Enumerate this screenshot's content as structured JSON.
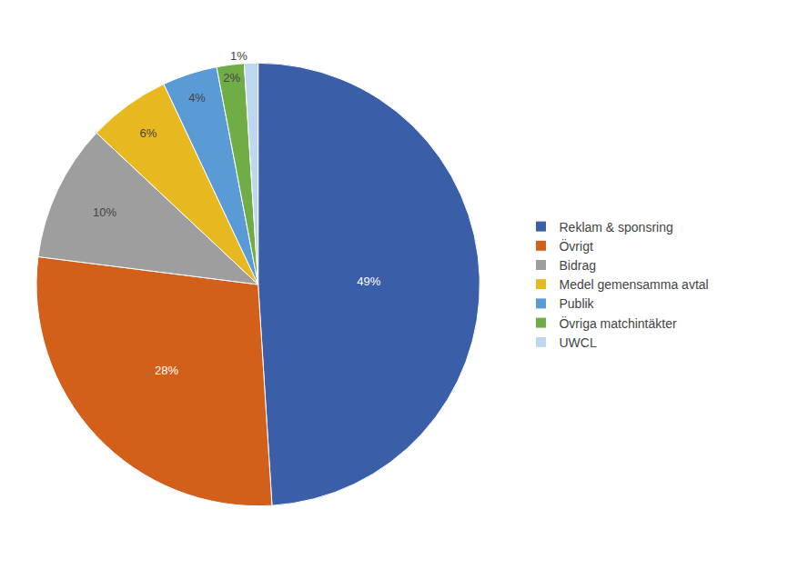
{
  "chart_data": {
    "type": "pie",
    "categories": [
      "Reklam & sponsring",
      "Övrigt",
      "Bidrag",
      "Medel gemensamma avtal",
      "Publik",
      "Övriga matchintäkter",
      "UWCL"
    ],
    "values": [
      49,
      28,
      10,
      6,
      4,
      2,
      1
    ],
    "value_labels": [
      "49%",
      "28%",
      "10%",
      "6%",
      "4%",
      "2%",
      "1%"
    ],
    "colors": [
      "#3A5EA8",
      "#D2601A",
      "#9E9E9E",
      "#E8B820",
      "#5B9BD5",
      "#70AD47",
      "#BDD7EE"
    ],
    "data_labels": true,
    "legend": "right"
  }
}
